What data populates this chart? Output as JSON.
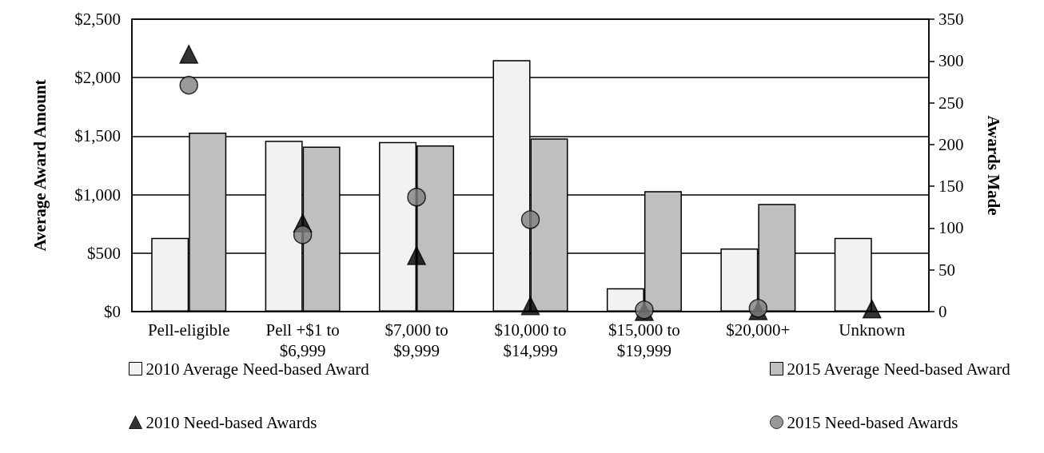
{
  "chart_data": {
    "type": "bar",
    "ylabel": "Average Award Amount",
    "y2label": "Awards Made",
    "categories": [
      "Pell-eligible",
      "Pell +$1 to $6,999",
      "$7,000 to $9,999",
      "$10,000 to $14,999",
      "$15,000 to $19,999",
      "$20,000+",
      "Unknown"
    ],
    "series": [
      {
        "name": "2010 Average Need-based Award",
        "color": "#f2f2f2",
        "values": [
          630,
          1460,
          1450,
          2150,
          200,
          540,
          630
        ]
      },
      {
        "name": "2015 Average Need-based Award",
        "color": "#bfbfbf",
        "values": [
          1530,
          1410,
          1420,
          1480,
          1030,
          920,
          null
        ]
      },
      {
        "name": "2010 Need-based Awards",
        "type": "scatter",
        "axis": "y2",
        "marker": "triangle",
        "color": "#000000",
        "values": [
          308,
          106,
          67,
          7,
          0,
          1,
          3
        ]
      },
      {
        "name": "2015 Need-based Awards",
        "type": "scatter",
        "axis": "y2",
        "marker": "circle",
        "color": "#808080",
        "values": [
          271,
          92,
          137,
          110,
          2,
          4,
          null
        ]
      }
    ],
    "ylim": [
      0,
      2500
    ],
    "yticks": [
      {
        "value": 0,
        "label": "$0"
      },
      {
        "value": 500,
        "label": "$500"
      },
      {
        "value": 1000,
        "label": "$1,000"
      },
      {
        "value": 1500,
        "label": "$1,500"
      },
      {
        "value": 2000,
        "label": "$2,000"
      },
      {
        "value": 2500,
        "label": "$2,500"
      }
    ],
    "y2lim": [
      0,
      350
    ],
    "y2ticks": [
      0,
      50,
      100,
      150,
      200,
      250,
      300,
      350
    ],
    "grid": "y",
    "legend": "bottom"
  }
}
